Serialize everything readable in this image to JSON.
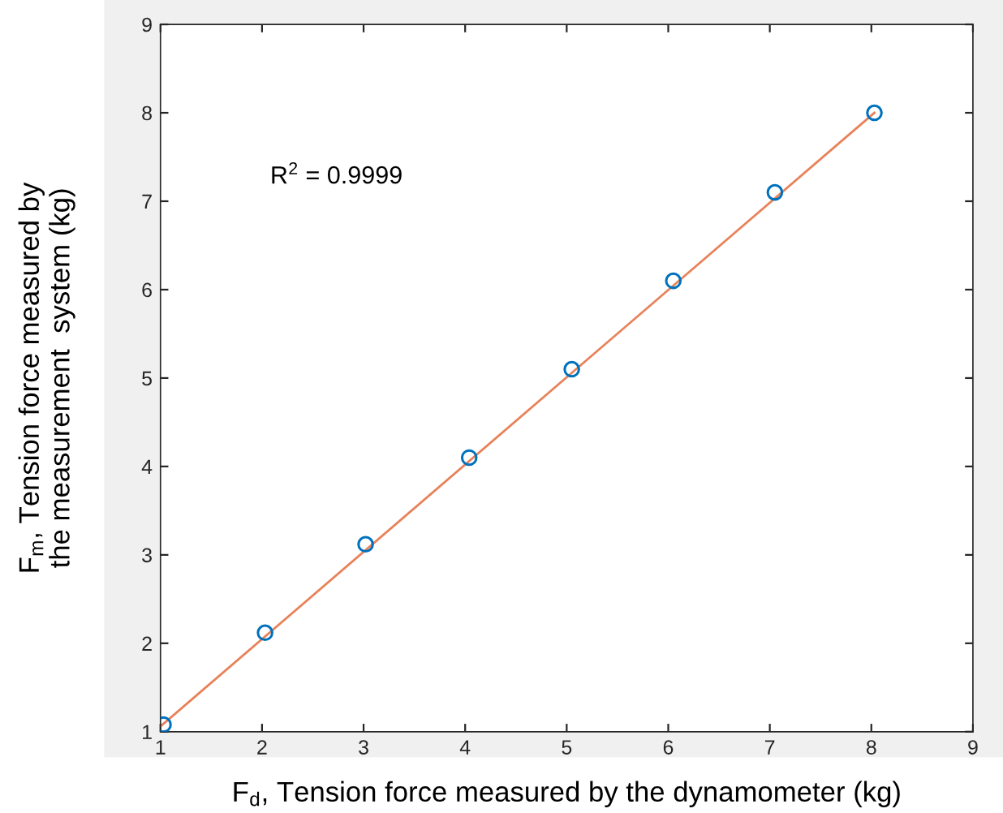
{
  "chart_data": {
    "type": "scatter",
    "xlabel": "F$_{d}$, Tension force measured by the dynamometer (kg)",
    "ylabel": "F$_{m}$, Tension force measured by\nthe measurement  system (kg)",
    "annotations": [
      "R$^{2}$ = 0.9999"
    ],
    "series": [
      {
        "color": "#0072bd",
        "marker": "circle",
        "x": [
          1.03,
          2.03,
          3.02,
          4.04,
          5.05,
          6.05,
          7.05,
          8.03
        ],
        "values": [
          1.08,
          2.12,
          3.12,
          4.1,
          5.1,
          6.1,
          7.1,
          8.0
        ]
      },
      {
        "type": "line",
        "color": "#e8825a",
        "marker": "none",
        "x": [
          1.0,
          8.03
        ],
        "values": [
          1.06,
          8.0
        ]
      }
    ],
    "xlim": [
      1,
      9
    ],
    "ylim": [
      1,
      9
    ],
    "xticks": [
      1,
      2,
      3,
      4,
      5,
      6,
      7,
      8,
      9
    ],
    "yticks": [
      1,
      2,
      3,
      4,
      5,
      6,
      7,
      8,
      9
    ],
    "grid": false,
    "legend": false
  }
}
